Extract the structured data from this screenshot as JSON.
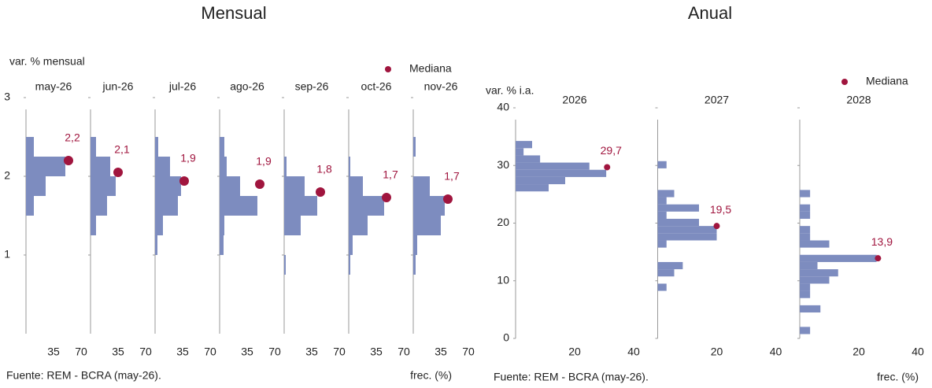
{
  "chart_data": [
    {
      "type": "histogram",
      "orientation": "horizontal",
      "title": "Mensual",
      "ylabel": "var. % mensual",
      "xlabel": "frec. (%)",
      "source": "Fuente: REM - BCRA (may-26).",
      "legend_label": "Mediana",
      "bar_color": "#7d8cbf",
      "median_color": "#a0153e",
      "ylim": [
        0,
        3
      ],
      "yticks": [
        1,
        2,
        3
      ],
      "xlim": [
        0,
        70
      ],
      "xticks": [
        35,
        70
      ],
      "panels": [
        {
          "title": "may-26",
          "bins": [
            0.75,
            1.0,
            1.25,
            1.5,
            1.75,
            2.0,
            2.25,
            2.5
          ],
          "counts": [
            0,
            0,
            0,
            10,
            25,
            50,
            10
          ],
          "median": {
            "x": 54,
            "y": 2.2,
            "value_label": "2,2"
          }
        },
        {
          "title": "jun-26",
          "bins": [
            0.75,
            1.0,
            1.25,
            1.5,
            1.75,
            2.0,
            2.25,
            2.5
          ],
          "counts": [
            0,
            0,
            7,
            21,
            32,
            25,
            7
          ],
          "median": {
            "x": 35,
            "y": 2.05,
            "value_label": "2,1"
          }
        },
        {
          "title": "jul-26",
          "bins": [
            0.75,
            1.0,
            1.25,
            1.5,
            1.75,
            2.0,
            2.25,
            2.5
          ],
          "counts": [
            0,
            3,
            10,
            29,
            33,
            19,
            4
          ],
          "median": {
            "x": 37,
            "y": 1.94,
            "value_label": "1,9"
          }
        },
        {
          "title": "ago-26",
          "bins": [
            0.75,
            1.0,
            1.25,
            1.5,
            1.75,
            2.0,
            2.25,
            2.5
          ],
          "counts": [
            0,
            5,
            6,
            48,
            26,
            9,
            6
          ],
          "median": {
            "x": 51,
            "y": 1.9,
            "value_label": "1,9"
          }
        },
        {
          "title": "sep-26",
          "bins": [
            0.75,
            1.0,
            1.25,
            1.5,
            1.75,
            2.0,
            2.25,
            2.5
          ],
          "counts": [
            2,
            0,
            21,
            42,
            26,
            3,
            0
          ],
          "median": {
            "x": 46,
            "y": 1.8,
            "value_label": "1,8"
          }
        },
        {
          "title": "oct-26",
          "bins": [
            0.75,
            1.0,
            1.25,
            1.5,
            1.75,
            2.0,
            2.25,
            2.5
          ],
          "counts": [
            2,
            5,
            24,
            45,
            18,
            2,
            0
          ],
          "median": {
            "x": 48,
            "y": 1.73,
            "value_label": "1,7"
          }
        },
        {
          "title": "nov-26",
          "bins": [
            0.75,
            1.0,
            1.25,
            1.5,
            1.75,
            2.0,
            2.25,
            2.5
          ],
          "counts": [
            3,
            5,
            35,
            40,
            21,
            0,
            3
          ],
          "median": {
            "x": 44,
            "y": 1.71,
            "value_label": "1,7"
          }
        }
      ]
    },
    {
      "type": "histogram",
      "orientation": "horizontal",
      "title": "Anual",
      "ylabel": "var. % i.a.",
      "xlabel": "frec. (%)",
      "source": "Fuente: REM - BCRA (may-26).",
      "legend_label": "Mediana",
      "bar_color": "#7d8cbf",
      "median_color": "#a0153e",
      "ylim": [
        0,
        40
      ],
      "yticks": [
        0,
        10,
        20,
        30,
        40
      ],
      "xlim": [
        0,
        40
      ],
      "xticks": [
        20,
        40
      ],
      "panels": [
        {
          "title": "2026",
          "bins": [
            25.5,
            26.75,
            28,
            29.25,
            30.5,
            31.75,
            33,
            34.25
          ],
          "counts": [
            11.2,
            16.8,
            30.7,
            25,
            8.3,
            2.7,
            5.6
          ],
          "median": {
            "x": 31,
            "y": 29.7,
            "value_label": "29,7"
          }
        },
        {
          "title": "2027",
          "bins": [
            8.25,
            9.5,
            10.75,
            12,
            13.25,
            14.5,
            15.75,
            17,
            18.25,
            19.5,
            20.75,
            22,
            23.25,
            24.5,
            25.75,
            27,
            28.25,
            29.5,
            30.75
          ],
          "counts": [
            3,
            0,
            5.6,
            8.5,
            0,
            0,
            3,
            20,
            20,
            14,
            3,
            14,
            3,
            5.6,
            0,
            0,
            0,
            3
          ],
          "median": {
            "x": 20,
            "y": 19.5,
            "value_label": "19,5"
          }
        },
        {
          "title": "2028",
          "bins": [
            0.75,
            2,
            3.25,
            4.5,
            5.75,
            7,
            8.25,
            9.5,
            10.75,
            12,
            13.25,
            14.5,
            15.75,
            17,
            18.25,
            19.5,
            20.75,
            22,
            23.25,
            24.5,
            25.75
          ],
          "counts": [
            3.5,
            0,
            0,
            7,
            0,
            3.5,
            3.5,
            10,
            13,
            6,
            26,
            0,
            10,
            3.5,
            3.5,
            0,
            3.5,
            3.5,
            0,
            3.5
          ],
          "median": {
            "x": 26.5,
            "y": 13.9,
            "value_label": "13,9"
          }
        }
      ]
    }
  ]
}
